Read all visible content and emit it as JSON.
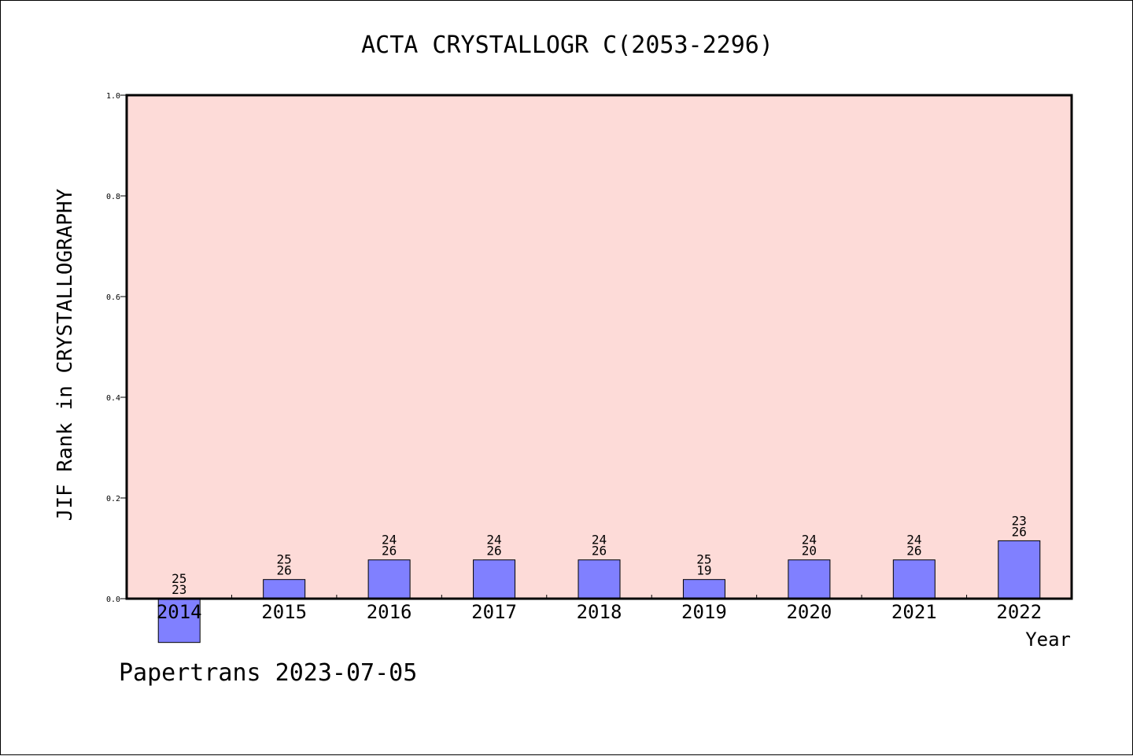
{
  "chart_data": {
    "type": "bar",
    "title": "ACTA CRYSTALLOGR C(2053-2296)",
    "xlabel": "Year",
    "ylabel": "JIF Rank in CRYSTALLOGRAPHY",
    "ylim": [
      0.0,
      1.0
    ],
    "yticks": [
      "0.0",
      "0.2",
      "0.4",
      "0.6",
      "0.8",
      "1.0"
    ],
    "categories": [
      "2014",
      "2015",
      "2016",
      "2017",
      "2018",
      "2019",
      "2020",
      "2021",
      "2022"
    ],
    "values": [
      -0.087,
      0.038,
      0.077,
      0.077,
      0.077,
      0.038,
      0.077,
      0.077,
      0.115
    ],
    "labels_top": [
      "25",
      "25",
      "24",
      "24",
      "24",
      "25",
      "24",
      "24",
      "23"
    ],
    "labels_bottom": [
      "23",
      "26",
      "26",
      "26",
      "26",
      "19",
      "20",
      "26",
      "26"
    ],
    "grid": false,
    "colors": {
      "plot_background": "#fddbd8",
      "bar_fill": "#8080ff",
      "bar_stroke": "#000000"
    }
  },
  "footer": "Papertrans 2023-07-05"
}
